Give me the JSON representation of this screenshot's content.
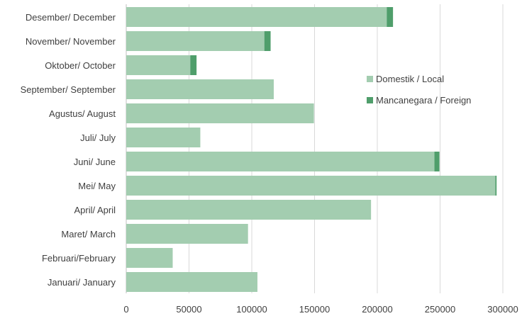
{
  "chart_data": {
    "type": "bar",
    "orientation": "horizontal",
    "stacked": true,
    "categories": [
      "Desember/ December",
      "November/ November",
      "Oktober/ October",
      "September/ September",
      "Agustus/ August",
      "Juli/ July",
      "Juni/ June",
      "Mei/ May",
      "April/ April",
      "Maret/ March",
      "Februari/February",
      "Januari/ January"
    ],
    "series": [
      {
        "name": "Domestik / Local",
        "color": "#a3cdb0",
        "values": [
          207500,
          110000,
          51000,
          117500,
          149500,
          59000,
          245500,
          294000,
          195000,
          97000,
          37000,
          104500
        ]
      },
      {
        "name": "Mancanegara / Foreign",
        "color": "#4f9e6b",
        "values": [
          5000,
          5000,
          5000,
          0,
          0,
          0,
          4000,
          1000,
          0,
          0,
          0,
          0
        ]
      }
    ],
    "xlim": [
      0,
      300000
    ],
    "xticks": [
      0,
      50000,
      100000,
      150000,
      200000,
      250000,
      300000
    ],
    "tick_labels": [
      "0",
      "50000",
      "100000",
      "150000",
      "200000",
      "250000",
      "300000"
    ],
    "grid": true,
    "legend": "right",
    "title": "",
    "xlabel": "",
    "ylabel": ""
  }
}
